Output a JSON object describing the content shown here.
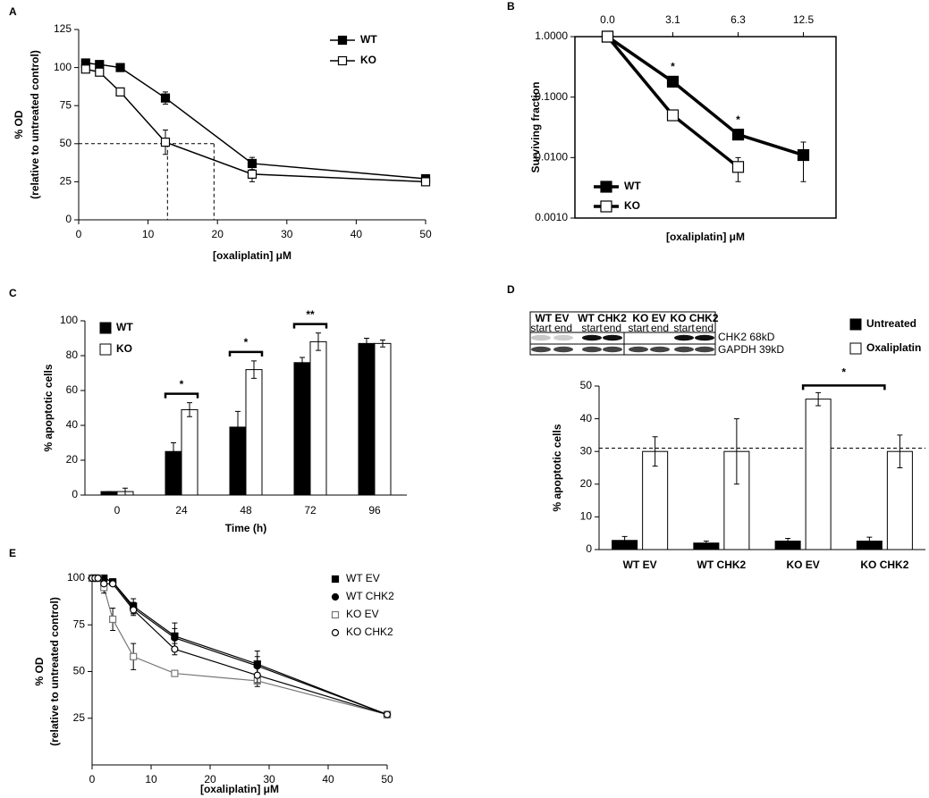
{
  "chart_data": [
    {
      "panel": "A",
      "type": "line",
      "xlabel": "[oxaliplatin]   μM",
      "ylabel": [
        "% OD",
        "(relative to untreated control)"
      ],
      "x": [
        1,
        3,
        6,
        12.5,
        25,
        50
      ],
      "xlim": [
        0,
        50
      ],
      "xticks": [
        0,
        10,
        20,
        30,
        40,
        50
      ],
      "ylim": [
        0,
        125
      ],
      "yticks": [
        0,
        25,
        50,
        75,
        100,
        125
      ],
      "legend": "upper right",
      "reference_lines": {
        "y": 50,
        "x": [
          12.8,
          19.5
        ]
      },
      "series": [
        {
          "name": "WT",
          "color": "#000000",
          "marker": "square",
          "filled": true,
          "values": [
            103,
            102,
            100,
            80,
            37,
            27
          ],
          "errors": [
            2,
            2,
            1,
            4,
            4,
            2
          ]
        },
        {
          "name": "KO",
          "color": "#000000",
          "marker": "square",
          "filled": false,
          "values": [
            99,
            97,
            84,
            51,
            30,
            25
          ],
          "errors": [
            2,
            2,
            1,
            8,
            5,
            2
          ]
        }
      ]
    },
    {
      "panel": "B",
      "type": "line",
      "log_y": true,
      "xlabel": "[oxaliplatin] μM",
      "ylabel": "Surviving fraction",
      "categories": [
        "0.0",
        "3.1",
        "6.3",
        "12.5"
      ],
      "xaxis_position": "top",
      "ylim": [
        0.001,
        1
      ],
      "yticks": [
        {
          "value": 0.001,
          "label": "0.0010"
        },
        {
          "value": 0.01,
          "label": "0.0100"
        },
        {
          "value": 0.1,
          "label": "0.1000"
        },
        {
          "value": 1,
          "label": "1.0000"
        }
      ],
      "legend": "lower left",
      "series": [
        {
          "name": "WT",
          "color": "#000000",
          "marker": "square",
          "filled": true,
          "values": [
            1,
            0.18,
            0.024,
            0.011
          ],
          "errors": [
            0,
            0.02,
            0.003,
            0.007
          ]
        },
        {
          "name": "KO",
          "color": "#000000",
          "marker": "square",
          "filled": false,
          "values": [
            1,
            0.05,
            0.007,
            null
          ],
          "errors": [
            0,
            0.005,
            0.003,
            null
          ]
        }
      ],
      "annotations": [
        {
          "text": "*",
          "x": "3.1"
        },
        {
          "text": "*",
          "x": "6.3"
        }
      ]
    },
    {
      "panel": "C",
      "type": "bar",
      "xlabel": "Time (h)",
      "ylabel": "% apoptotic cells",
      "categories": [
        "0",
        "24",
        "48",
        "72",
        "96"
      ],
      "ylim": [
        0,
        100
      ],
      "yticks": [
        0,
        20,
        40,
        60,
        80,
        100
      ],
      "legend": "upper left",
      "series": [
        {
          "name": "WT",
          "color": "#000000",
          "values": [
            2,
            25,
            39,
            76,
            87
          ],
          "errors": [
            0,
            5,
            9,
            3,
            3
          ]
        },
        {
          "name": "KO",
          "color": "#ffffff",
          "values": [
            2,
            49,
            72,
            88,
            87
          ],
          "errors": [
            2,
            4,
            5,
            5,
            2
          ]
        }
      ],
      "annotations": [
        {
          "text": "*",
          "x": "24"
        },
        {
          "text": "*",
          "x": "48"
        },
        {
          "text": "**",
          "x": "72"
        }
      ]
    },
    {
      "panel": "D",
      "type": "bar",
      "ylabel": "% apoptotic cells",
      "categories": [
        "WT EV",
        "WT CHK2",
        "KO EV",
        "KO CHK2"
      ],
      "ylim": [
        0,
        50
      ],
      "yticks": [
        0,
        10,
        20,
        30,
        40,
        50
      ],
      "legend": "upper right",
      "reference_lines": {
        "y": 31
      },
      "series": [
        {
          "name": "Untreated",
          "color": "#000000",
          "values": [
            2.8,
            2,
            2.6,
            2.6
          ],
          "errors": [
            1.2,
            0.6,
            0.8,
            1.2
          ]
        },
        {
          "name": "Oxaliplatin",
          "color": "#ffffff",
          "values": [
            30,
            30,
            46,
            30
          ],
          "errors": [
            4.5,
            10,
            2,
            5
          ]
        }
      ],
      "annotations": [
        {
          "text": "*",
          "x": [
            "KO EV",
            "KO CHK2"
          ]
        }
      ],
      "blot": {
        "groups": [
          "WT EV",
          "WT CHK2",
          "KO EV",
          "KO CHK2"
        ],
        "lanes": [
          "start",
          "end",
          "start",
          "end",
          "start",
          "end",
          "start",
          "end"
        ],
        "bands": [
          "CHK2 68kD",
          "GAPDH 39kD"
        ]
      }
    },
    {
      "panel": "E",
      "type": "line",
      "xlabel": "[oxaliplatin] μM",
      "ylabel": [
        "% OD",
        "(relative to untreated control)"
      ],
      "x": [
        0,
        0.5,
        1,
        2,
        3.5,
        7,
        14,
        28,
        50
      ],
      "xlim": [
        0,
        50
      ],
      "xticks": [
        0,
        10,
        20,
        30,
        40,
        50
      ],
      "ylim": [
        0,
        100
      ],
      "yticks": [
        25,
        50,
        75,
        100
      ],
      "legend": "upper right",
      "series": [
        {
          "name": "WT EV",
          "color": "#000000",
          "marker": "square",
          "filled": true,
          "values": [
            100,
            100,
            100,
            100,
            98,
            85,
            69,
            54,
            27
          ],
          "errors": [
            0,
            0,
            0,
            0,
            1,
            4,
            7,
            7,
            1
          ]
        },
        {
          "name": "WT CHK2",
          "color": "#000000",
          "marker": "circle",
          "filled": true,
          "values": [
            100,
            100,
            100,
            100,
            98,
            84,
            68,
            53,
            27
          ],
          "errors": [
            0,
            0,
            0,
            0,
            1,
            3,
            5,
            5,
            1
          ]
        },
        {
          "name": "KO EV",
          "color": "#777777",
          "marker": "square",
          "filled": false,
          "values": [
            100,
            100,
            100,
            95,
            78,
            58,
            49,
            45,
            27
          ],
          "errors": [
            0,
            0,
            0,
            3,
            6,
            7,
            1,
            3,
            1
          ]
        },
        {
          "name": "KO CHK2",
          "color": "#000000",
          "marker": "circle",
          "filled": false,
          "values": [
            100,
            100,
            100,
            97,
            97,
            83,
            62,
            48,
            27
          ],
          "errors": [
            0,
            0,
            0,
            1,
            1,
            3,
            3,
            4,
            1
          ]
        }
      ]
    }
  ]
}
